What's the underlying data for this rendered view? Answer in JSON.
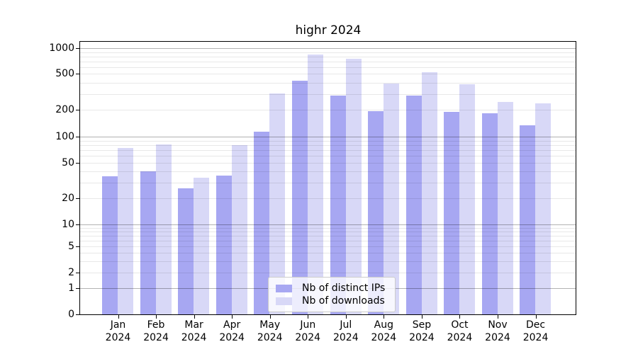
{
  "chart_data": {
    "type": "bar",
    "title": "highr 2024",
    "categories": [
      "Jan",
      "Feb",
      "Mar",
      "Apr",
      "May",
      "Jun",
      "Jul",
      "Aug",
      "Sep",
      "Oct",
      "Nov",
      "Dec"
    ],
    "x_tick_year": "2024",
    "series": [
      {
        "name": "Nb of distinct IPs",
        "color": "#a7a7f2",
        "values": [
          35,
          40,
          26,
          36,
          114,
          420,
          285,
          193,
          285,
          188,
          182,
          135
        ]
      },
      {
        "name": "Nb of downloads",
        "color": "#d8d8f7",
        "values": [
          75,
          81,
          34,
          80,
          305,
          850,
          760,
          390,
          525,
          385,
          244,
          237
        ]
      }
    ],
    "y_axis": {
      "ticks": [
        0,
        1,
        2,
        5,
        10,
        20,
        50,
        100,
        200,
        500,
        1000
      ],
      "scale": "symlog",
      "range": [
        0,
        1000
      ]
    },
    "legend": {
      "position": "lower center",
      "entries": [
        "Nb of distinct IPs",
        "Nb of downloads"
      ]
    },
    "grid": "horizontal major and minor lines drawn over bars"
  }
}
